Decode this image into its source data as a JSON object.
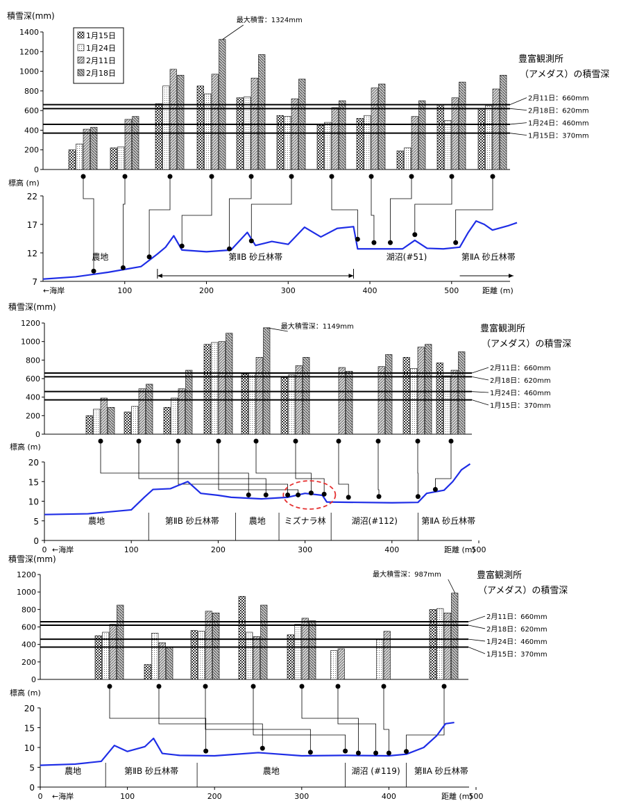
{
  "chart_data": [
    {
      "type": "bar",
      "ylabel": "積雪深(mm)",
      "ylim": [
        0,
        1400
      ],
      "yticks": [
        0,
        200,
        400,
        600,
        800,
        1000,
        1200,
        1400
      ],
      "legend": {
        "placement": "top-left",
        "boxed": true
      },
      "series": [
        {
          "name": "1月15日",
          "values": [
            200,
            220,
            670,
            850,
            730,
            550,
            450,
            520,
            190,
            660,
            620
          ]
        },
        {
          "name": "1月24日",
          "values": [
            260,
            230,
            850,
            770,
            740,
            540,
            480,
            550,
            220,
            500,
            650
          ]
        },
        {
          "name": "2月11日",
          "values": [
            410,
            510,
            1020,
            970,
            930,
            720,
            630,
            830,
            540,
            730,
            820
          ]
        },
        {
          "name": "2月18日",
          "values": [
            430,
            540,
            960,
            1324,
            1170,
            920,
            700,
            870,
            700,
            890,
            960
          ]
        }
      ],
      "reference_lines": [
        {
          "label": "2月11日：660mm",
          "value": 660
        },
        {
          "label": "2月18日：620mm",
          "value": 620
        },
        {
          "label": "1月24日：460mm",
          "value": 460
        },
        {
          "label": "1月15日：370mm",
          "value": 370
        }
      ],
      "max_annotation": {
        "label": "最大積雪：1324mm",
        "value": 1324
      },
      "station_label": [
        "豊富観測所",
        "（アメダス）の積雪深"
      ],
      "profile": {
        "ylabel": "標高 (m)",
        "xlabel": "距離 (m)",
        "coast_label": "←海岸",
        "ylim": [
          7,
          22
        ],
        "yticks": [
          7,
          12,
          17,
          22
        ],
        "xlim": [
          0,
          580
        ],
        "xticks": [
          100,
          200,
          300,
          400,
          500
        ],
        "points": [
          [
            0,
            7.4
          ],
          [
            40,
            7.8
          ],
          [
            80,
            8.6
          ],
          [
            120,
            9.6
          ],
          [
            140,
            11.8
          ],
          [
            150,
            13
          ],
          [
            160,
            15
          ],
          [
            170,
            12.5
          ],
          [
            200,
            12.2
          ],
          [
            230,
            12.5
          ],
          [
            250,
            15.6
          ],
          [
            260,
            13.3
          ],
          [
            280,
            14
          ],
          [
            300,
            13.5
          ],
          [
            320,
            16.5
          ],
          [
            340,
            14.8
          ],
          [
            360,
            16.3
          ],
          [
            380,
            16.6
          ],
          [
            385,
            12.7
          ],
          [
            420,
            12.7
          ],
          [
            440,
            12.7
          ],
          [
            455,
            14.2
          ],
          [
            470,
            12.8
          ],
          [
            490,
            12.7
          ],
          [
            510,
            13
          ],
          [
            520,
            15.5
          ],
          [
            530,
            17.6
          ],
          [
            540,
            17
          ],
          [
            550,
            16
          ],
          [
            570,
            16.8
          ],
          [
            580,
            17.3
          ]
        ],
        "markers": [
          [
            62,
            8.8
          ],
          [
            98,
            9.4
          ],
          [
            130,
            11.3
          ],
          [
            170,
            13.2
          ],
          [
            228,
            12.7
          ],
          [
            255,
            14.1
          ],
          [
            385,
            14.4
          ],
          [
            405,
            13.8
          ],
          [
            425,
            13.8
          ],
          [
            455,
            15.2
          ],
          [
            505,
            13.8
          ]
        ],
        "zones": [
          {
            "label": "農地",
            "from": 0,
            "to": 140
          },
          {
            "label": "第ⅡB 砂丘林帯",
            "from": 140,
            "to": 380
          },
          {
            "label": "湖沼(#51)",
            "from": 380,
            "to": 510
          },
          {
            "label": "第ⅡA 砂丘林帯",
            "from": 510,
            "to": 580
          }
        ]
      }
    },
    {
      "type": "bar",
      "ylabel": "積雪深(mm)",
      "ylim": [
        0,
        1200
      ],
      "yticks": [
        0,
        200,
        400,
        600,
        800,
        1000,
        1200
      ],
      "series": [
        {
          "name": "1月15日",
          "values": [
            200,
            240,
            290,
            970,
            650,
            610,
            0,
            0,
            830,
            770
          ]
        },
        {
          "name": "1月24日",
          "values": [
            270,
            300,
            390,
            990,
            660,
            640,
            0,
            0,
            710,
            630
          ]
        },
        {
          "name": "2月11日",
          "values": [
            390,
            490,
            490,
            1000,
            830,
            740,
            720,
            730,
            940,
            690
          ]
        },
        {
          "name": "2月18日",
          "values": [
            290,
            540,
            690,
            1090,
            1149,
            830,
            680,
            860,
            970,
            890
          ]
        }
      ],
      "reference_lines": [
        {
          "label": "2月11日：660mm",
          "value": 660
        },
        {
          "label": "2月18日：620mm",
          "value": 620
        },
        {
          "label": "1月24日：460mm",
          "value": 460
        },
        {
          "label": "1月15日：370mm",
          "value": 370
        }
      ],
      "max_annotation": {
        "label": "最大積雪深：1149mm",
        "value": 1149
      },
      "station_label": [
        "豊富観測所",
        "（アメダス）の積雪深"
      ],
      "profile": {
        "ylabel": "標高 (m)",
        "xlabel": "距離 (m)",
        "coast_label": "←海岸",
        "ylim": [
          0,
          20
        ],
        "yticks": [
          0,
          5,
          10,
          15,
          20
        ],
        "xlim": [
          0,
          500
        ],
        "xticks": [
          0,
          100,
          200,
          300,
          400,
          500
        ],
        "points": [
          [
            0,
            6.6
          ],
          [
            50,
            6.8
          ],
          [
            100,
            7.8
          ],
          [
            115,
            11
          ],
          [
            125,
            13
          ],
          [
            145,
            13.2
          ],
          [
            165,
            15
          ],
          [
            180,
            12
          ],
          [
            200,
            11.5
          ],
          [
            215,
            11
          ],
          [
            250,
            10.6
          ],
          [
            280,
            11
          ],
          [
            300,
            12
          ],
          [
            320,
            11.5
          ],
          [
            325,
            9.8
          ],
          [
            400,
            9.6
          ],
          [
            430,
            9.7
          ],
          [
            440,
            12
          ],
          [
            460,
            12.8
          ],
          [
            470,
            15
          ],
          [
            480,
            18
          ],
          [
            490,
            19.5
          ]
        ],
        "markers": [
          [
            235,
            11.6
          ],
          [
            255,
            11.6
          ],
          [
            280,
            11.6
          ],
          [
            292,
            11.6
          ],
          [
            307,
            12.1
          ],
          [
            322,
            11.8
          ],
          [
            350,
            11
          ],
          [
            385,
            11.2
          ],
          [
            430,
            11.2
          ],
          [
            450,
            13
          ]
        ],
        "highlight": {
          "cx": 305,
          "cy": 11.6,
          "rx": 30,
          "ry": 3.6
        },
        "zones": [
          {
            "label": "農地",
            "from": 0,
            "to": 120
          },
          {
            "label": "第ⅡB 砂丘林帯",
            "from": 120,
            "to": 220
          },
          {
            "label": "農地",
            "from": 220,
            "to": 270
          },
          {
            "label": "ミズナラ林",
            "from": 270,
            "to": 330
          },
          {
            "label": "湖沼(#112)",
            "from": 330,
            "to": 430
          },
          {
            "label": "第ⅡA 砂丘林帯",
            "from": 430,
            "to": 500
          }
        ]
      }
    },
    {
      "type": "bar",
      "ylabel": "積雪深(mm)",
      "ylim": [
        0,
        1200
      ],
      "yticks": [
        0,
        200,
        400,
        600,
        800,
        1000,
        1200
      ],
      "series": [
        {
          "name": "1月15日",
          "values": [
            500,
            170,
            560,
            950,
            510,
            0,
            0,
            800
          ]
        },
        {
          "name": "1月24日",
          "values": [
            540,
            530,
            550,
            540,
            630,
            330,
            460,
            810
          ]
        },
        {
          "name": "2月11日",
          "values": [
            630,
            420,
            780,
            490,
            700,
            350,
            550,
            760
          ]
        },
        {
          "name": "2月18日",
          "values": [
            850,
            370,
            760,
            850,
            670,
            0,
            0,
            987
          ]
        }
      ],
      "reference_lines": [
        {
          "label": "2月11日：660mm",
          "value": 660
        },
        {
          "label": "2月18日：620mm",
          "value": 620
        },
        {
          "label": "1月24日：460mm",
          "value": 460
        },
        {
          "label": "1月15日：370mm",
          "value": 370
        }
      ],
      "max_annotation": {
        "label": "最大積雪深：987mm",
        "value": 987
      },
      "station_label": [
        "豊富観測所",
        "（アメダス）の積雪深"
      ],
      "profile": {
        "ylabel": "標高 (m)",
        "xlabel": "距離 (m)",
        "coast_label": "←海岸",
        "ylim": [
          0,
          20
        ],
        "yticks": [
          0,
          5,
          10,
          15,
          20
        ],
        "xlim": [
          0,
          500
        ],
        "xticks": [
          0,
          100,
          200,
          300,
          400,
          500
        ],
        "points": [
          [
            0,
            5.5
          ],
          [
            40,
            5.8
          ],
          [
            70,
            6.5
          ],
          [
            85,
            10.5
          ],
          [
            100,
            9
          ],
          [
            120,
            10.2
          ],
          [
            130,
            12.3
          ],
          [
            140,
            8.5
          ],
          [
            160,
            8
          ],
          [
            200,
            7.9
          ],
          [
            250,
            8.7
          ],
          [
            300,
            7.9
          ],
          [
            350,
            8
          ],
          [
            400,
            7.9
          ],
          [
            420,
            8.3
          ],
          [
            440,
            10
          ],
          [
            455,
            13
          ],
          [
            465,
            16
          ],
          [
            475,
            16.3
          ]
        ],
        "markers": [
          [
            190,
            9.1
          ],
          [
            255,
            9.8
          ],
          [
            310,
            8.8
          ],
          [
            350,
            9.1
          ],
          [
            365,
            8.6
          ],
          [
            385,
            8.6
          ],
          [
            400,
            8.6
          ],
          [
            420,
            9
          ]
        ],
        "zones": [
          {
            "label": "農地",
            "from": 0,
            "to": 75
          },
          {
            "label": "第ⅡB 砂丘林帯",
            "from": 75,
            "to": 180
          },
          {
            "label": "農地",
            "from": 180,
            "to": 350
          },
          {
            "label": "湖沼 (#119)",
            "from": 350,
            "to": 420
          },
          {
            "label": "第ⅡA 砂丘林帯",
            "from": 420,
            "to": 500
          }
        ]
      }
    }
  ]
}
